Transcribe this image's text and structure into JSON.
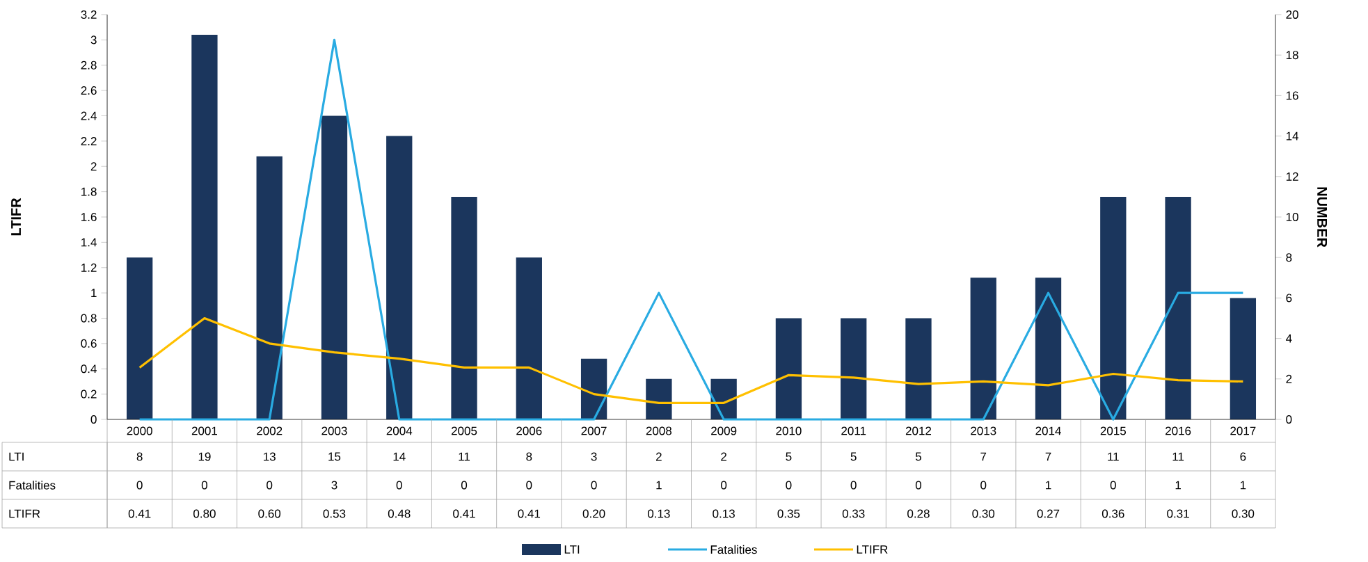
{
  "chart_data": {
    "type": "bar",
    "categories": [
      "2000",
      "2001",
      "2002",
      "2003",
      "2004",
      "2005",
      "2006",
      "2007",
      "2008",
      "2009",
      "2010",
      "2011",
      "2012",
      "2013",
      "2014",
      "2015",
      "2016",
      "2017"
    ],
    "ylabel": "LTIFR",
    "y2label": "NUMBER",
    "ylim": [
      0,
      3.2
    ],
    "yticks": [
      0,
      0.2,
      0.4,
      0.6,
      0.8,
      1,
      1.2,
      1.4,
      1.6,
      1.8,
      2,
      2.2,
      2.4,
      2.6,
      2.8,
      3,
      3.2
    ],
    "y2lim": [
      0,
      20
    ],
    "y2ticks": [
      0,
      2,
      4,
      6,
      8,
      10,
      12,
      14,
      16,
      18,
      20
    ],
    "series": [
      {
        "name": "LTI",
        "axis": "y2",
        "color": "#1b365d",
        "values": [
          8,
          19,
          13,
          15,
          14,
          11,
          8,
          3,
          2,
          2,
          5,
          5,
          5,
          7,
          7,
          11,
          11,
          6
        ],
        "value_labels": [
          "8",
          "19",
          "13",
          "15",
          "14",
          "11",
          "8",
          "3",
          "2",
          "2",
          "5",
          "5",
          "5",
          "7",
          "7",
          "11",
          "11",
          "6"
        ]
      },
      {
        "name": "Fatalities",
        "type": "line",
        "color": "#29abe2",
        "values": [
          0,
          0,
          0,
          3,
          0,
          0,
          0,
          0,
          1,
          0,
          0,
          0,
          0,
          0,
          1,
          0,
          1,
          1
        ],
        "value_labels": [
          "0",
          "0",
          "0",
          "3",
          "0",
          "0",
          "0",
          "0",
          "1",
          "0",
          "0",
          "0",
          "0",
          "0",
          "1",
          "0",
          "1",
          "1"
        ]
      },
      {
        "name": "LTIFR",
        "type": "line",
        "color": "#ffc000",
        "values": [
          0.41,
          0.8,
          0.6,
          0.53,
          0.48,
          0.41,
          0.41,
          0.2,
          0.13,
          0.13,
          0.35,
          0.33,
          0.28,
          0.3,
          0.27,
          0.36,
          0.31,
          0.3
        ],
        "value_labels": [
          "0.41",
          "0.80",
          "0.60",
          "0.53",
          "0.48",
          "0.41",
          "0.41",
          "0.20",
          "0.13",
          "0.13",
          "0.35",
          "0.33",
          "0.28",
          "0.30",
          "0.27",
          "0.36",
          "0.31",
          "0.30"
        ]
      }
    ],
    "legend": "bottom"
  }
}
